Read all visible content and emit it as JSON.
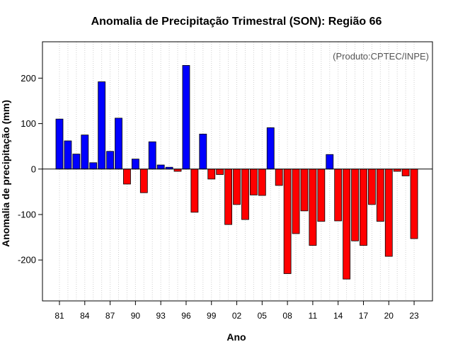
{
  "chart_data": {
    "type": "bar",
    "title": "Anomalia de Precipitação Trimestral (SON): Região 66",
    "xlabel": "Ano",
    "ylabel": "Anomalia de precipitação (mm)",
    "credit": "(Produto:CPTEC/INPE)",
    "ylim": [
      -290,
      280
    ],
    "yticks": [
      -200,
      -100,
      0,
      100,
      200
    ],
    "grid": "vertical dotted",
    "positive_color": "#0000ff",
    "negative_color": "#ff0000",
    "years": [
      1981,
      1982,
      1983,
      1984,
      1985,
      1986,
      1987,
      1988,
      1989,
      1990,
      1991,
      1992,
      1993,
      1994,
      1995,
      1996,
      1997,
      1998,
      1999,
      2000,
      2001,
      2002,
      2003,
      2004,
      2005,
      2006,
      2007,
      2008,
      2009,
      2010,
      2011,
      2012,
      2013,
      2014,
      2015,
      2016,
      2017,
      2018,
      2019,
      2020,
      2021,
      2022,
      2023
    ],
    "xtick_labels": [
      "81",
      "84",
      "87",
      "90",
      "93",
      "96",
      "99",
      "02",
      "05",
      "08",
      "11",
      "14",
      "17",
      "20",
      "23"
    ],
    "values": [
      110,
      62,
      33,
      75,
      14,
      192,
      39,
      112,
      -33,
      22,
      -52,
      60,
      9,
      4,
      -5,
      228,
      -95,
      77,
      -22,
      -12,
      -122,
      -78,
      -111,
      -57,
      -58,
      91,
      -36,
      -230,
      -142,
      -92,
      -168,
      -115,
      32,
      -114,
      -242,
      -158,
      -168,
      -78,
      -115,
      -192,
      -5,
      -15,
      -153
    ]
  }
}
